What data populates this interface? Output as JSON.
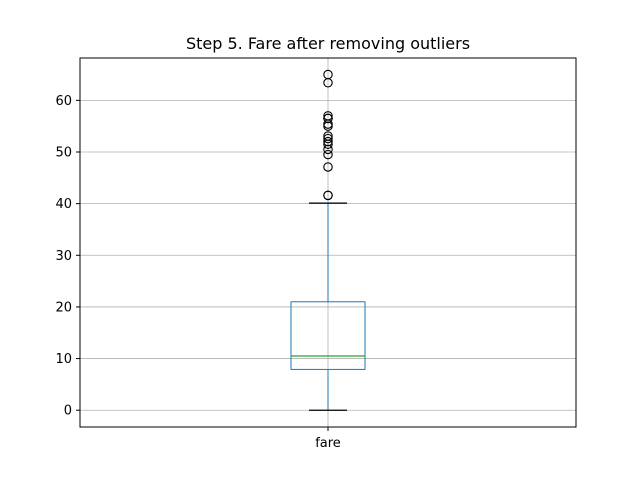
{
  "chart_data": {
    "type": "box",
    "title": "Step 5. Fare after removing outliers",
    "categories": [
      "fare"
    ],
    "y_ticks": [
      0,
      10,
      20,
      30,
      40,
      50,
      60
    ],
    "ylim": [
      -3.25,
      68.2
    ],
    "grid": true,
    "box": {
      "whisker_low": 0,
      "q1": 7.9,
      "median": 10.5,
      "q3": 21.0,
      "whisker_high": 40.1
    },
    "outliers": [
      65.0,
      63.4,
      57.0,
      56.5,
      56.5,
      55.4,
      55.0,
      53.1,
      52.6,
      52.0,
      51.5,
      50.5,
      49.5,
      47.1,
      41.6,
      41.6
    ],
    "colors": {
      "box": "#1f77b4",
      "median": "#2ca02c",
      "whisker_cap": "#000000",
      "grid": "#b0b0b0",
      "outlier_edge": "#000000"
    }
  }
}
